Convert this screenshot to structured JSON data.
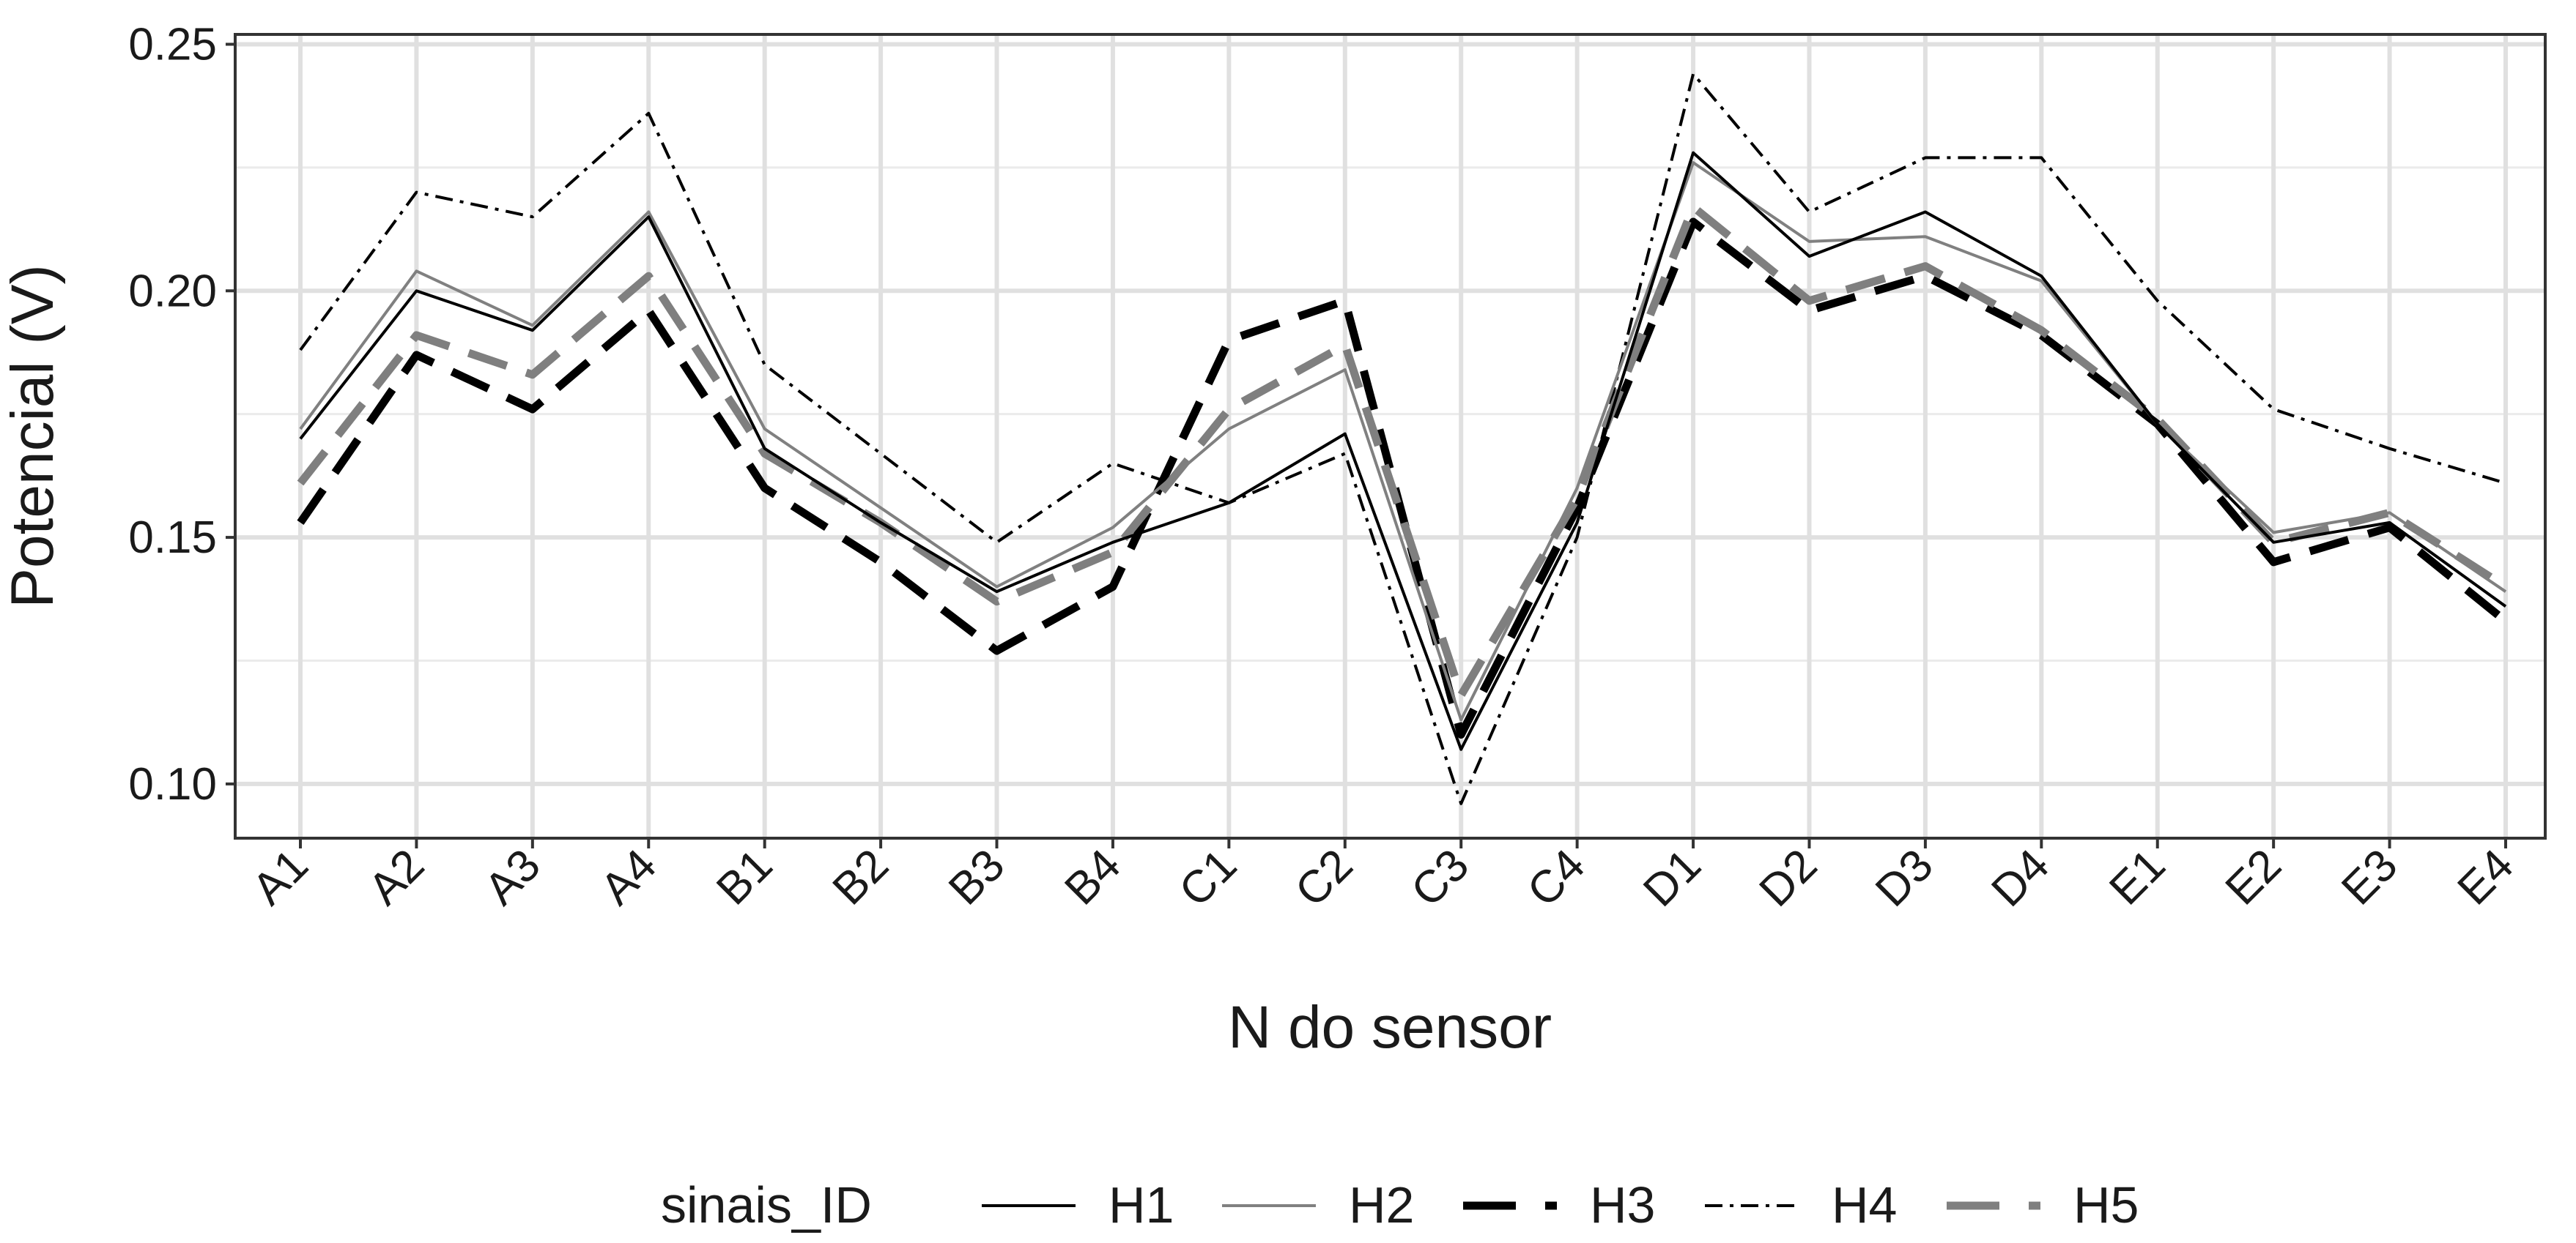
{
  "chart_data": {
    "type": "line",
    "xlabel": "N do sensor",
    "ylabel": "Potencial (V)",
    "categories": [
      "A1",
      "A2",
      "A3",
      "A4",
      "B1",
      "B2",
      "B3",
      "B4",
      "C1",
      "C2",
      "C3",
      "C4",
      "D1",
      "D2",
      "D3",
      "D4",
      "E1",
      "E2",
      "E3",
      "E4"
    ],
    "ylim": [
      0.089,
      0.252
    ],
    "yticks": [
      0.1,
      0.15,
      0.2,
      0.25
    ],
    "ytick_labels": [
      "0.10",
      "0.15",
      "0.20",
      "0.25"
    ],
    "grid": true,
    "legend": {
      "title": "sinais_ID",
      "position": "bottom"
    },
    "series": [
      {
        "name": "H1",
        "color": "#000000",
        "width": 4,
        "dash": "",
        "values": [
          0.17,
          0.2,
          0.192,
          0.215,
          0.168,
          0.153,
          0.139,
          0.149,
          0.157,
          0.171,
          0.107,
          0.153,
          0.228,
          0.207,
          0.216,
          0.203,
          0.173,
          0.149,
          0.153,
          0.136
        ]
      },
      {
        "name": "H2",
        "color": "#808080",
        "width": 4,
        "dash": "",
        "values": [
          0.172,
          0.204,
          0.193,
          0.216,
          0.172,
          0.156,
          0.14,
          0.152,
          0.172,
          0.184,
          0.113,
          0.16,
          0.226,
          0.21,
          0.211,
          0.202,
          0.173,
          0.151,
          0.155,
          0.139
        ]
      },
      {
        "name": "H3",
        "color": "#000000",
        "width": 11,
        "dash": "55 28",
        "values": [
          0.153,
          0.187,
          0.176,
          0.196,
          0.16,
          0.145,
          0.127,
          0.14,
          0.19,
          0.198,
          0.11,
          0.156,
          0.214,
          0.196,
          0.203,
          0.191,
          0.173,
          0.145,
          0.152,
          0.133
        ]
      },
      {
        "name": "H4",
        "color": "#000000",
        "width": 4,
        "dash": "24 10 5 10",
        "values": [
          0.188,
          0.22,
          0.215,
          0.236,
          0.185,
          0.167,
          0.149,
          0.165,
          0.157,
          0.167,
          0.096,
          0.15,
          0.244,
          0.216,
          0.227,
          0.227,
          0.198,
          0.176,
          0.168,
          0.161
        ]
      },
      {
        "name": "H5",
        "color": "#7f7f7f",
        "width": 11,
        "dash": "55 28",
        "values": [
          0.161,
          0.191,
          0.183,
          0.203,
          0.167,
          0.153,
          0.137,
          0.147,
          0.176,
          0.189,
          0.118,
          0.158,
          0.217,
          0.198,
          0.205,
          0.192,
          0.174,
          0.149,
          0.155,
          0.14
        ]
      }
    ]
  }
}
